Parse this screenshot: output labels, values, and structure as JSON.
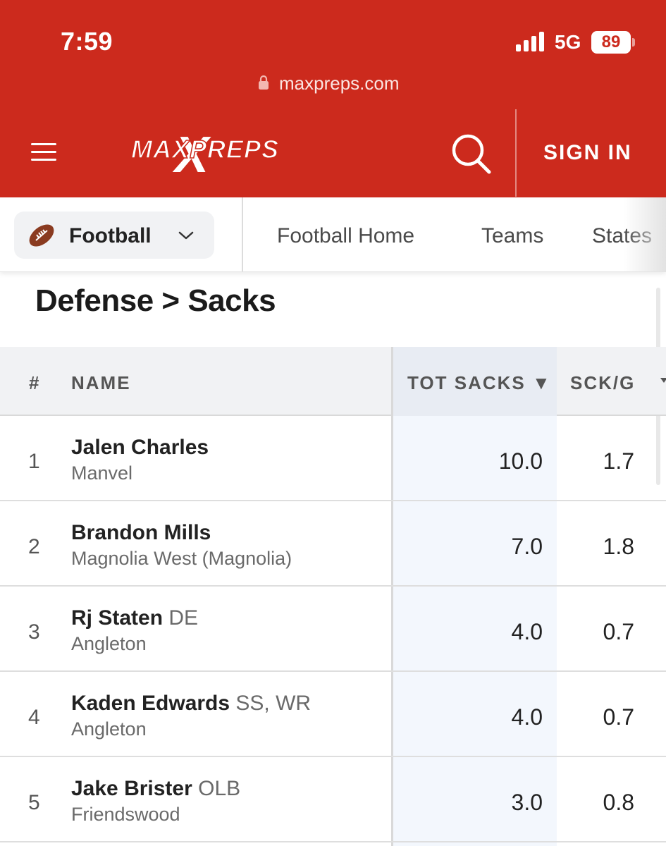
{
  "status_bar": {
    "time": "7:59",
    "network": "5G",
    "battery": "89"
  },
  "browser": {
    "url": "maxpreps.com"
  },
  "header": {
    "logo_text": "MAXPREPS",
    "signin_label": "SIGN IN"
  },
  "subnav": {
    "sport": "Football",
    "links": [
      "Football Home",
      "Teams",
      "States"
    ]
  },
  "page": {
    "title": "Defense > Sacks"
  },
  "table": {
    "columns": {
      "rank": "#",
      "name": "NAME",
      "tot_sacks": "TOT SACKS",
      "sort_indicator": "▼",
      "sck_per_game": "SCK/G"
    },
    "rows": [
      {
        "rank": "1",
        "name": "Jalen Charles",
        "position": "",
        "school": "Manvel",
        "tot_sacks": "10.0",
        "sck_per_game": "1.7"
      },
      {
        "rank": "2",
        "name": "Brandon Mills",
        "position": "",
        "school": "Magnolia West (Magnolia)",
        "tot_sacks": "7.0",
        "sck_per_game": "1.8"
      },
      {
        "rank": "3",
        "name": "Rj Staten",
        "position": "DE",
        "school": "Angleton",
        "tot_sacks": "4.0",
        "sck_per_game": "0.7"
      },
      {
        "rank": "4",
        "name": "Kaden Edwards",
        "position": "SS, WR",
        "school": "Angleton",
        "tot_sacks": "4.0",
        "sck_per_game": "0.7"
      },
      {
        "rank": "5",
        "name": "Jake Brister",
        "position": "OLB",
        "school": "Friendswood",
        "tot_sacks": "3.0",
        "sck_per_game": "0.8"
      }
    ]
  },
  "colors": {
    "brand_red": "#cc2a1d",
    "sorted_column": "#f3f7fd"
  }
}
